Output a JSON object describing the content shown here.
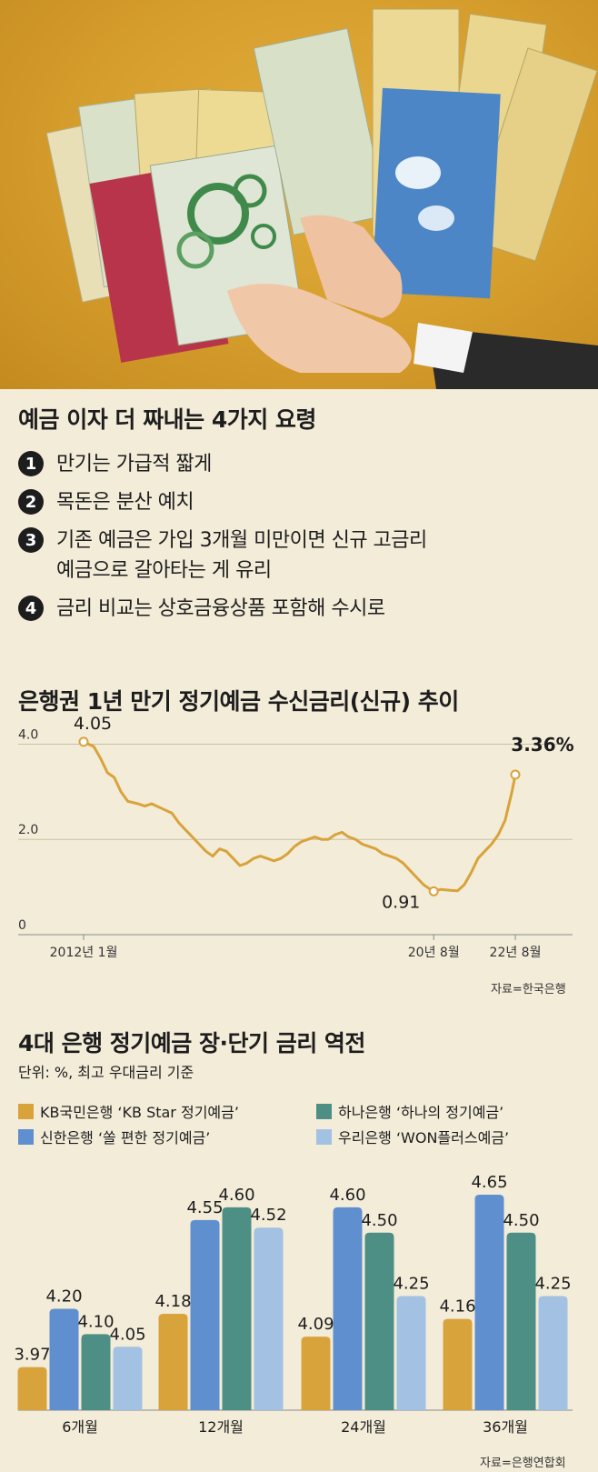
{
  "tips_section": {
    "title": "예금 이자 더 짜내는 4가지 요령",
    "items": [
      {
        "num": "1",
        "text": "만기는 가급적 짧게"
      },
      {
        "num": "2",
        "text": "목돈은 분산 예치"
      },
      {
        "num": "3",
        "text": "기존 예금은 가입 3개월 미만이면 신규 고금리\n예금으로 갈아타는 게 유리"
      },
      {
        "num": "4",
        "text": "금리 비교는 상호금융상품 포함해 수시로"
      }
    ]
  },
  "chart_data": [
    {
      "type": "line",
      "title": "은행권 1년 만기 정기예금 수신금리(신규) 추이",
      "source": "자료=한국은행",
      "y_ticks": [
        "4.0",
        "2.0",
        "0"
      ],
      "ylim": [
        0,
        4.2
      ],
      "x_tick_labels": [
        {
          "label": "2012년 1월",
          "x": 0
        },
        {
          "label": "20년 8월",
          "x": 103
        },
        {
          "label": "22년 8월",
          "x": 127
        }
      ],
      "x_range": [
        0,
        127
      ],
      "annotations": [
        {
          "x": 0,
          "y": 4.05,
          "label": "4.05"
        },
        {
          "x": 103,
          "y": 0.91,
          "label": "0.91"
        },
        {
          "x": 127,
          "y": 3.36,
          "label": "3.36%"
        }
      ],
      "grid": true,
      "series": [
        {
          "color": "#d9a33b",
          "points": [
            [
              0,
              4.05
            ],
            [
              3,
              3.95
            ],
            [
              5,
              3.7
            ],
            [
              7,
              3.4
            ],
            [
              9,
              3.3
            ],
            [
              11,
              3.0
            ],
            [
              13,
              2.8
            ],
            [
              16,
              2.75
            ],
            [
              18,
              2.7
            ],
            [
              20,
              2.75
            ],
            [
              23,
              2.65
            ],
            [
              26,
              2.55
            ],
            [
              28,
              2.35
            ],
            [
              30,
              2.2
            ],
            [
              32,
              2.05
            ],
            [
              34,
              1.9
            ],
            [
              36,
              1.75
            ],
            [
              38,
              1.65
            ],
            [
              40,
              1.8
            ],
            [
              42,
              1.75
            ],
            [
              44,
              1.6
            ],
            [
              46,
              1.45
            ],
            [
              48,
              1.5
            ],
            [
              50,
              1.6
            ],
            [
              52,
              1.65
            ],
            [
              54,
              1.6
            ],
            [
              56,
              1.55
            ],
            [
              58,
              1.6
            ],
            [
              60,
              1.7
            ],
            [
              62,
              1.85
            ],
            [
              64,
              1.95
            ],
            [
              66,
              2.0
            ],
            [
              68,
              2.05
            ],
            [
              70,
              2.0
            ],
            [
              72,
              2.0
            ],
            [
              74,
              2.1
            ],
            [
              76,
              2.15
            ],
            [
              78,
              2.05
            ],
            [
              80,
              2.0
            ],
            [
              82,
              1.9
            ],
            [
              84,
              1.85
            ],
            [
              86,
              1.8
            ],
            [
              88,
              1.7
            ],
            [
              90,
              1.65
            ],
            [
              92,
              1.6
            ],
            [
              94,
              1.5
            ],
            [
              96,
              1.35
            ],
            [
              98,
              1.2
            ],
            [
              100,
              1.05
            ],
            [
              102,
              0.95
            ],
            [
              103,
              0.91
            ],
            [
              105,
              0.95
            ],
            [
              108,
              0.93
            ],
            [
              110,
              0.92
            ],
            [
              112,
              1.05
            ],
            [
              114,
              1.3
            ],
            [
              116,
              1.6
            ],
            [
              118,
              1.75
            ],
            [
              120,
              1.9
            ],
            [
              122,
              2.1
            ],
            [
              124,
              2.4
            ],
            [
              126,
              3.0
            ],
            [
              127,
              3.36
            ]
          ]
        }
      ]
    },
    {
      "type": "bar",
      "title": "4대 은행 정기예금 장·단기 금리 역전",
      "subtitle": "단위: %, 최고 우대금리 기준",
      "source": "자료=은행연합회",
      "categories": [
        "6개월",
        "12개월",
        "24개월",
        "36개월"
      ],
      "ylim": [
        3.8,
        4.7
      ],
      "series": [
        {
          "name": "KB국민은행 ‘KB Star 정기예금’",
          "color": "#d9a33b",
          "values": [
            3.97,
            4.18,
            4.09,
            4.16
          ]
        },
        {
          "name": "신한은행 ‘쏠 편한 정기예금’",
          "color": "#5f8fcf",
          "values": [
            4.2,
            4.55,
            4.6,
            4.65
          ]
        },
        {
          "name": "하나은행 ‘하나의 정기예금’",
          "color": "#4e8f85",
          "values": [
            4.1,
            4.6,
            4.5,
            4.5
          ]
        },
        {
          "name": "우리은행 ‘WON플러스예금’",
          "color": "#a3c1e3",
          "values": [
            4.05,
            4.52,
            4.25,
            4.25
          ]
        }
      ],
      "legend_order": [
        0,
        2,
        1,
        3
      ]
    }
  ]
}
